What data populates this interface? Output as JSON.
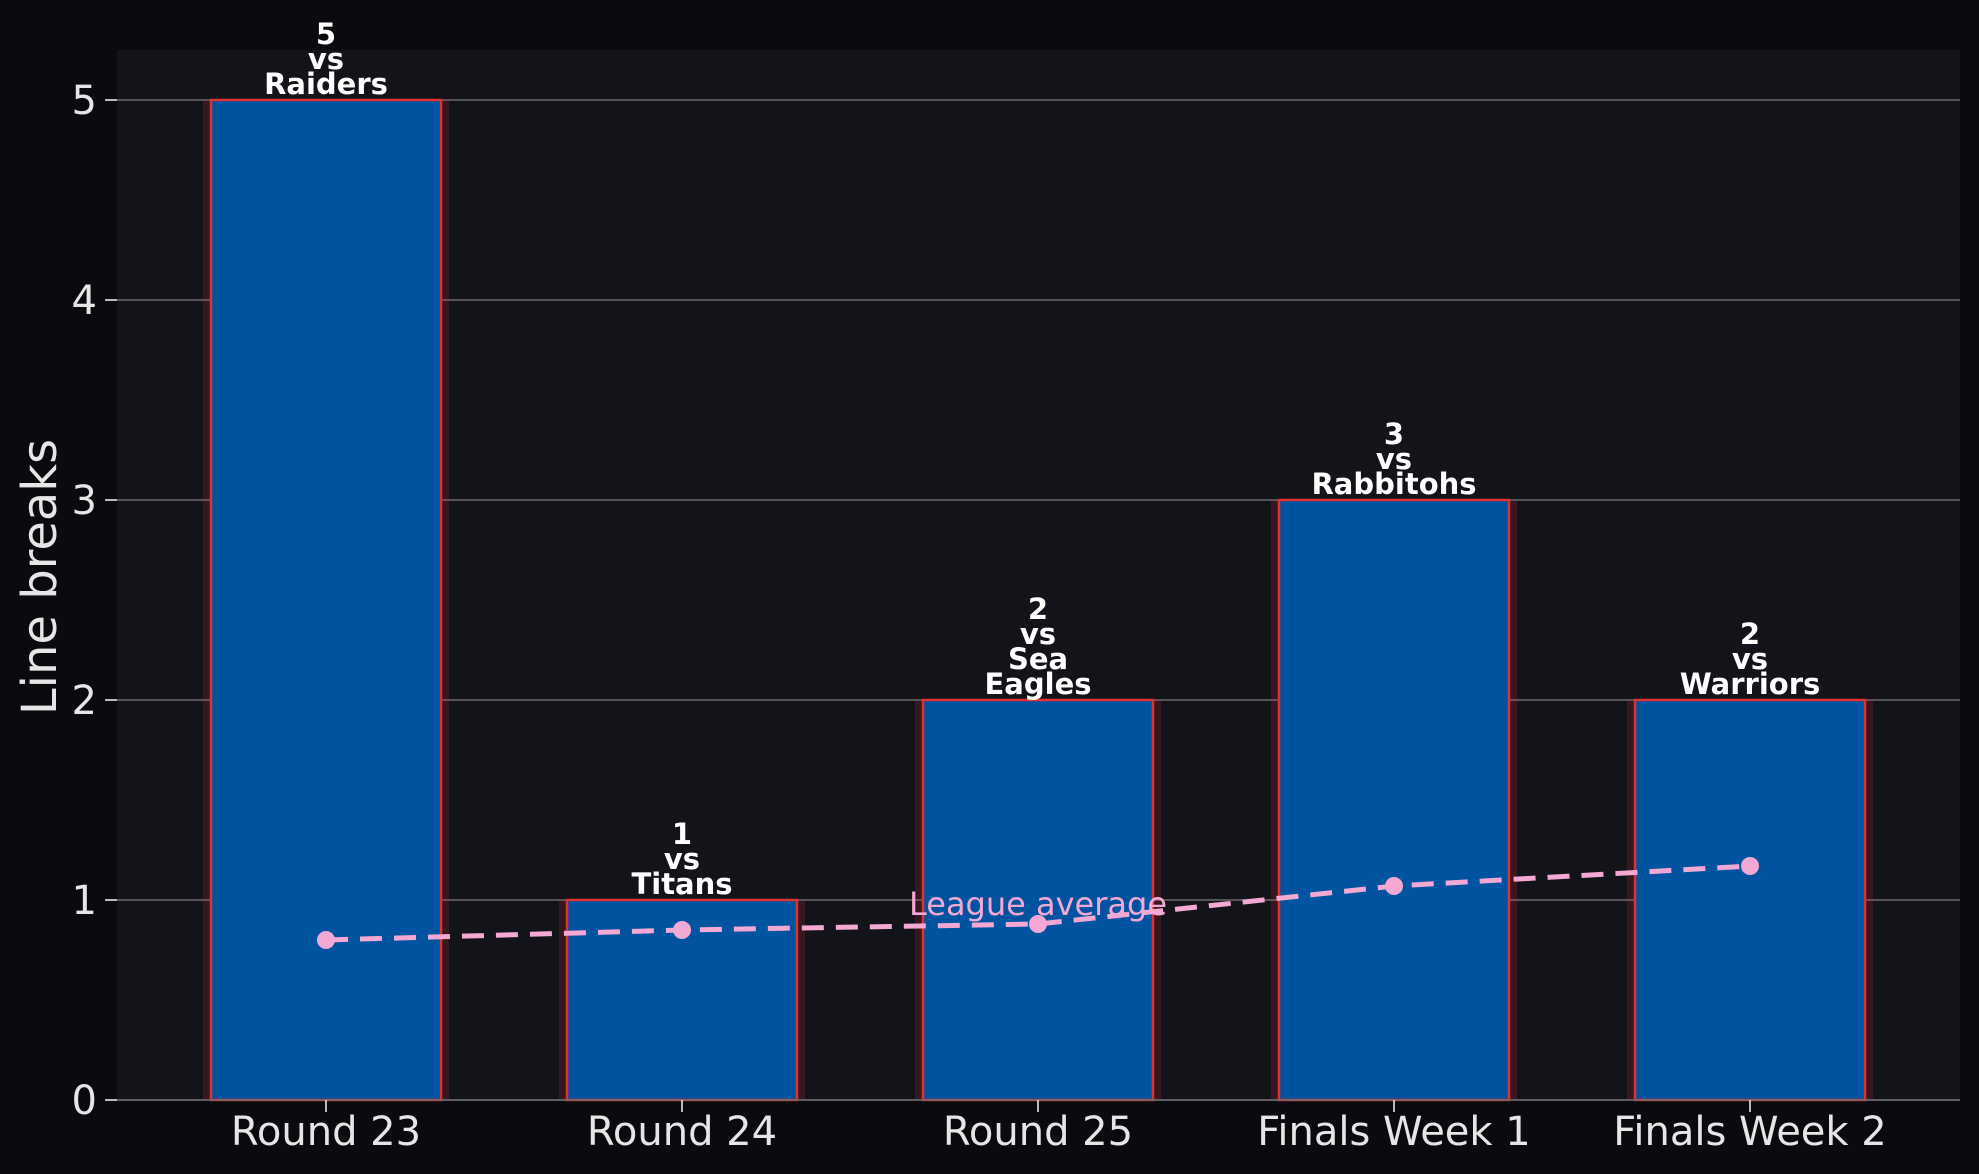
{
  "chart_data": {
    "type": "bar",
    "title": "",
    "xlabel": "",
    "ylabel": "Line breaks",
    "ylim": [
      0,
      5.25
    ],
    "yticks": [
      0,
      1,
      2,
      3,
      4,
      5
    ],
    "grid": "horizontal",
    "categories": [
      "Round 23",
      "Round 24",
      "Round 25",
      "Finals Week 1",
      "Finals Week 2"
    ],
    "series": [
      {
        "values": [
          5,
          1,
          2,
          3,
          2
        ],
        "labels": [
          [
            "5",
            "vs",
            "Raiders"
          ],
          [
            "1",
            "vs",
            "Titans"
          ],
          [
            "2",
            "vs",
            "Sea",
            "Eagles"
          ],
          [
            "3",
            "vs",
            "Rabbitohs"
          ],
          [
            "2",
            "vs",
            "Warriors"
          ]
        ]
      },
      {
        "name": "League average",
        "type": "line",
        "style": "dashed",
        "values": [
          0.8,
          0.85,
          0.88,
          1.07,
          1.17
        ]
      }
    ],
    "colors": {
      "bar_fill": "#00539f",
      "bar_edge": "#e03030",
      "average_line": "#f4a8d4",
      "plot_background": "#13131a",
      "figure_background": "#0b0b0f",
      "grid": "#6a6a6e",
      "text": "#e6e6e6"
    }
  }
}
